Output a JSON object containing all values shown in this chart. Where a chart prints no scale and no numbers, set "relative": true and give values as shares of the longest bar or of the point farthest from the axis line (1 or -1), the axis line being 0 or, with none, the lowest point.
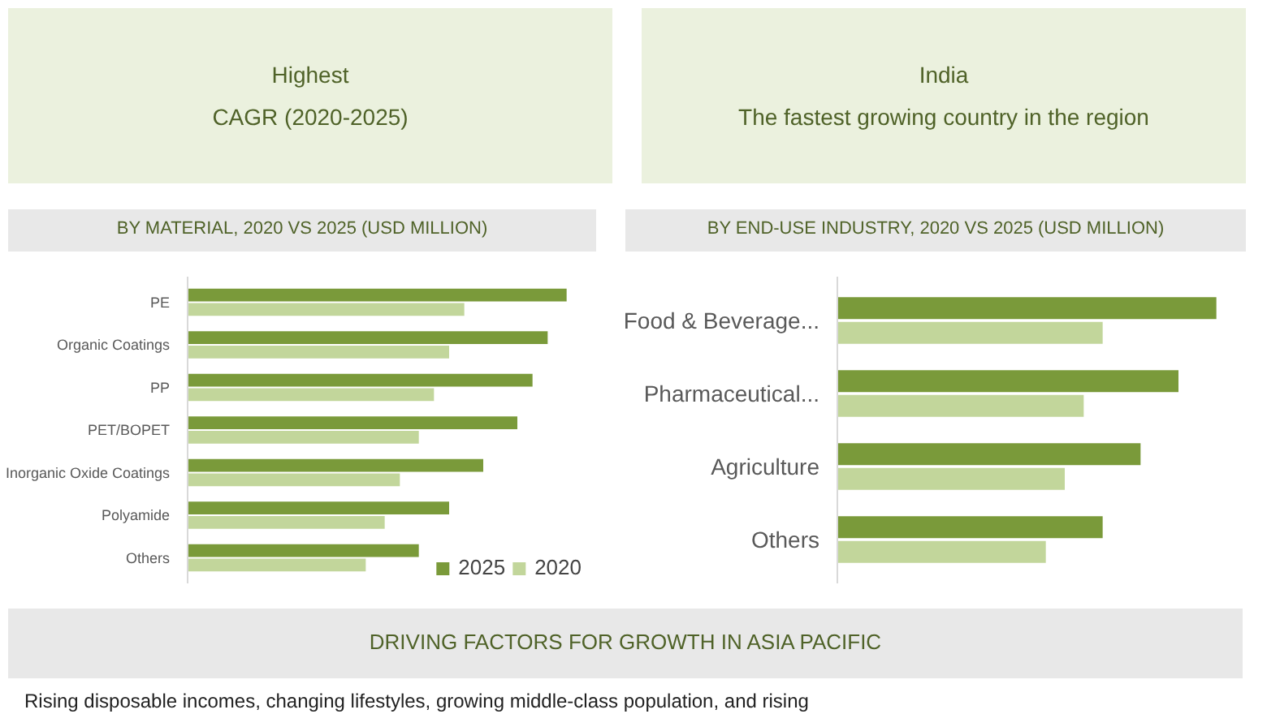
{
  "chart_data": [
    {
      "type": "other",
      "annotations": [
        "Highest",
        "CAGR (2020-2025)"
      ]
    },
    {
      "type": "other",
      "annotations": [
        "India",
        "The fastest growing country in the region"
      ]
    },
    {
      "type": "bar",
      "orientation": "horizontal",
      "relative": true,
      "title": "BY MATERIAL, 2020 VS 2025 (USD MILLION)",
      "categories": [
        "PE",
        "Organic Coatings",
        "PP",
        "PET/BOPET",
        "Inorganic Oxide Coatings",
        "Polyamide",
        "Others"
      ],
      "legend": "bottom right",
      "series": [
        {
          "name": "2025",
          "color": "#7a9a3a",
          "values": [
            1,
            0.95,
            0.91,
            0.87,
            0.78,
            0.69,
            0.61
          ]
        },
        {
          "name": "2020",
          "color": "#c2d69b",
          "values": [
            0.73,
            0.69,
            0.65,
            0.61,
            0.56,
            0.52,
            0.47
          ]
        }
      ]
    },
    {
      "type": "bar",
      "orientation": "horizontal",
      "relative": true,
      "title": "BY END-USE INDUSTRY, 2020 VS 2025 (USD MILLION)",
      "categories": [
        "Food & Beverage...",
        "Pharmaceutical...",
        "Agriculture",
        "Others"
      ],
      "series": [
        {
          "color": "#7a9a3a",
          "values": [
            1,
            0.9,
            0.8,
            0.7
          ]
        },
        {
          "color": "#c2d69b",
          "values": [
            0.7,
            0.65,
            0.6,
            0.55
          ]
        }
      ]
    },
    {
      "type": "other",
      "title": "DRIVING FACTORS FOR GROWTH IN ASIA PACIFIC",
      "annotations": [
        "Rising disposable incomes, changing lifestyles, growing middle-class population, and rising"
      ]
    }
  ]
}
